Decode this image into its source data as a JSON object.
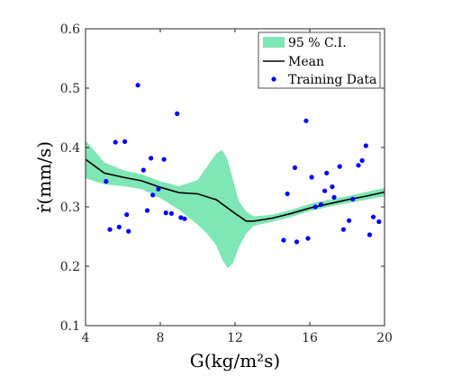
{
  "chart_data": {
    "type": "scatter",
    "title": "",
    "xlabel": "G(kg/m²s)",
    "ylabel": "ṙ(mm/s)",
    "xlim": [
      4,
      20
    ],
    "ylim": [
      0.1,
      0.6
    ],
    "x_ticks": [
      "4",
      "8",
      "12",
      "16",
      "20"
    ],
    "y_ticks": [
      "0.1",
      "0.2",
      "0.3",
      "0.4",
      "0.5",
      "0.6"
    ],
    "grid": false,
    "legend_position": "top-right",
    "legend": [
      "95 % C.I.",
      "Mean",
      "Training Data"
    ],
    "colors": {
      "ci": "#7fe6b5",
      "mean": "#000000",
      "points": "#0000ff"
    },
    "series": [
      {
        "name": "95 % C.I.",
        "type": "area",
        "x": [
          4.0,
          5.0,
          6.0,
          7.0,
          8.0,
          9.0,
          10.0,
          10.5,
          11.0,
          11.3,
          11.6,
          11.9,
          12.2,
          12.6,
          13.0,
          14.0,
          15.0,
          16.0,
          17.0,
          18.0,
          19.0,
          20.0
        ],
        "upper": [
          0.412,
          0.375,
          0.362,
          0.355,
          0.343,
          0.335,
          0.345,
          0.368,
          0.39,
          0.396,
          0.38,
          0.345,
          0.31,
          0.292,
          0.284,
          0.287,
          0.295,
          0.305,
          0.312,
          0.318,
          0.325,
          0.332
        ],
        "lower": [
          0.348,
          0.338,
          0.335,
          0.33,
          0.315,
          0.295,
          0.27,
          0.255,
          0.235,
          0.212,
          0.197,
          0.205,
          0.232,
          0.255,
          0.268,
          0.275,
          0.283,
          0.293,
          0.3,
          0.306,
          0.312,
          0.318
        ]
      },
      {
        "name": "Mean",
        "type": "line",
        "x": [
          4.0,
          5.0,
          6.0,
          7.0,
          8.0,
          9.0,
          10.0,
          11.0,
          12.0,
          12.6,
          13.0,
          14.0,
          15.0,
          16.0,
          17.0,
          18.0,
          19.0,
          20.0
        ],
        "y": [
          0.38,
          0.357,
          0.35,
          0.344,
          0.333,
          0.324,
          0.322,
          0.312,
          0.289,
          0.276,
          0.276,
          0.281,
          0.289,
          0.298,
          0.305,
          0.312,
          0.318,
          0.325
        ]
      },
      {
        "name": "Training Data",
        "type": "scatter",
        "points": [
          [
            5.1,
            0.343
          ],
          [
            5.3,
            0.262
          ],
          [
            5.6,
            0.409
          ],
          [
            5.8,
            0.266
          ],
          [
            6.1,
            0.41
          ],
          [
            6.2,
            0.287
          ],
          [
            6.3,
            0.259
          ],
          [
            6.8,
            0.505
          ],
          [
            7.1,
            0.362
          ],
          [
            7.3,
            0.294
          ],
          [
            7.5,
            0.382
          ],
          [
            7.6,
            0.32
          ],
          [
            7.9,
            0.33
          ],
          [
            8.2,
            0.38
          ],
          [
            8.3,
            0.29
          ],
          [
            8.6,
            0.289
          ],
          [
            8.9,
            0.457
          ],
          [
            9.1,
            0.282
          ],
          [
            9.3,
            0.28
          ],
          [
            14.6,
            0.244
          ],
          [
            14.8,
            0.322
          ],
          [
            15.2,
            0.366
          ],
          [
            15.3,
            0.241
          ],
          [
            15.8,
            0.445
          ],
          [
            15.9,
            0.247
          ],
          [
            16.1,
            0.35
          ],
          [
            16.3,
            0.3
          ],
          [
            16.6,
            0.304
          ],
          [
            16.8,
            0.327
          ],
          [
            16.9,
            0.357
          ],
          [
            17.2,
            0.334
          ],
          [
            17.3,
            0.316
          ],
          [
            17.6,
            0.368
          ],
          [
            17.8,
            0.262
          ],
          [
            18.1,
            0.277
          ],
          [
            18.3,
            0.313
          ],
          [
            18.6,
            0.37
          ],
          [
            18.8,
            0.378
          ],
          [
            19.0,
            0.403
          ],
          [
            19.2,
            0.253
          ],
          [
            19.4,
            0.283
          ],
          [
            19.7,
            0.275
          ]
        ]
      }
    ]
  }
}
